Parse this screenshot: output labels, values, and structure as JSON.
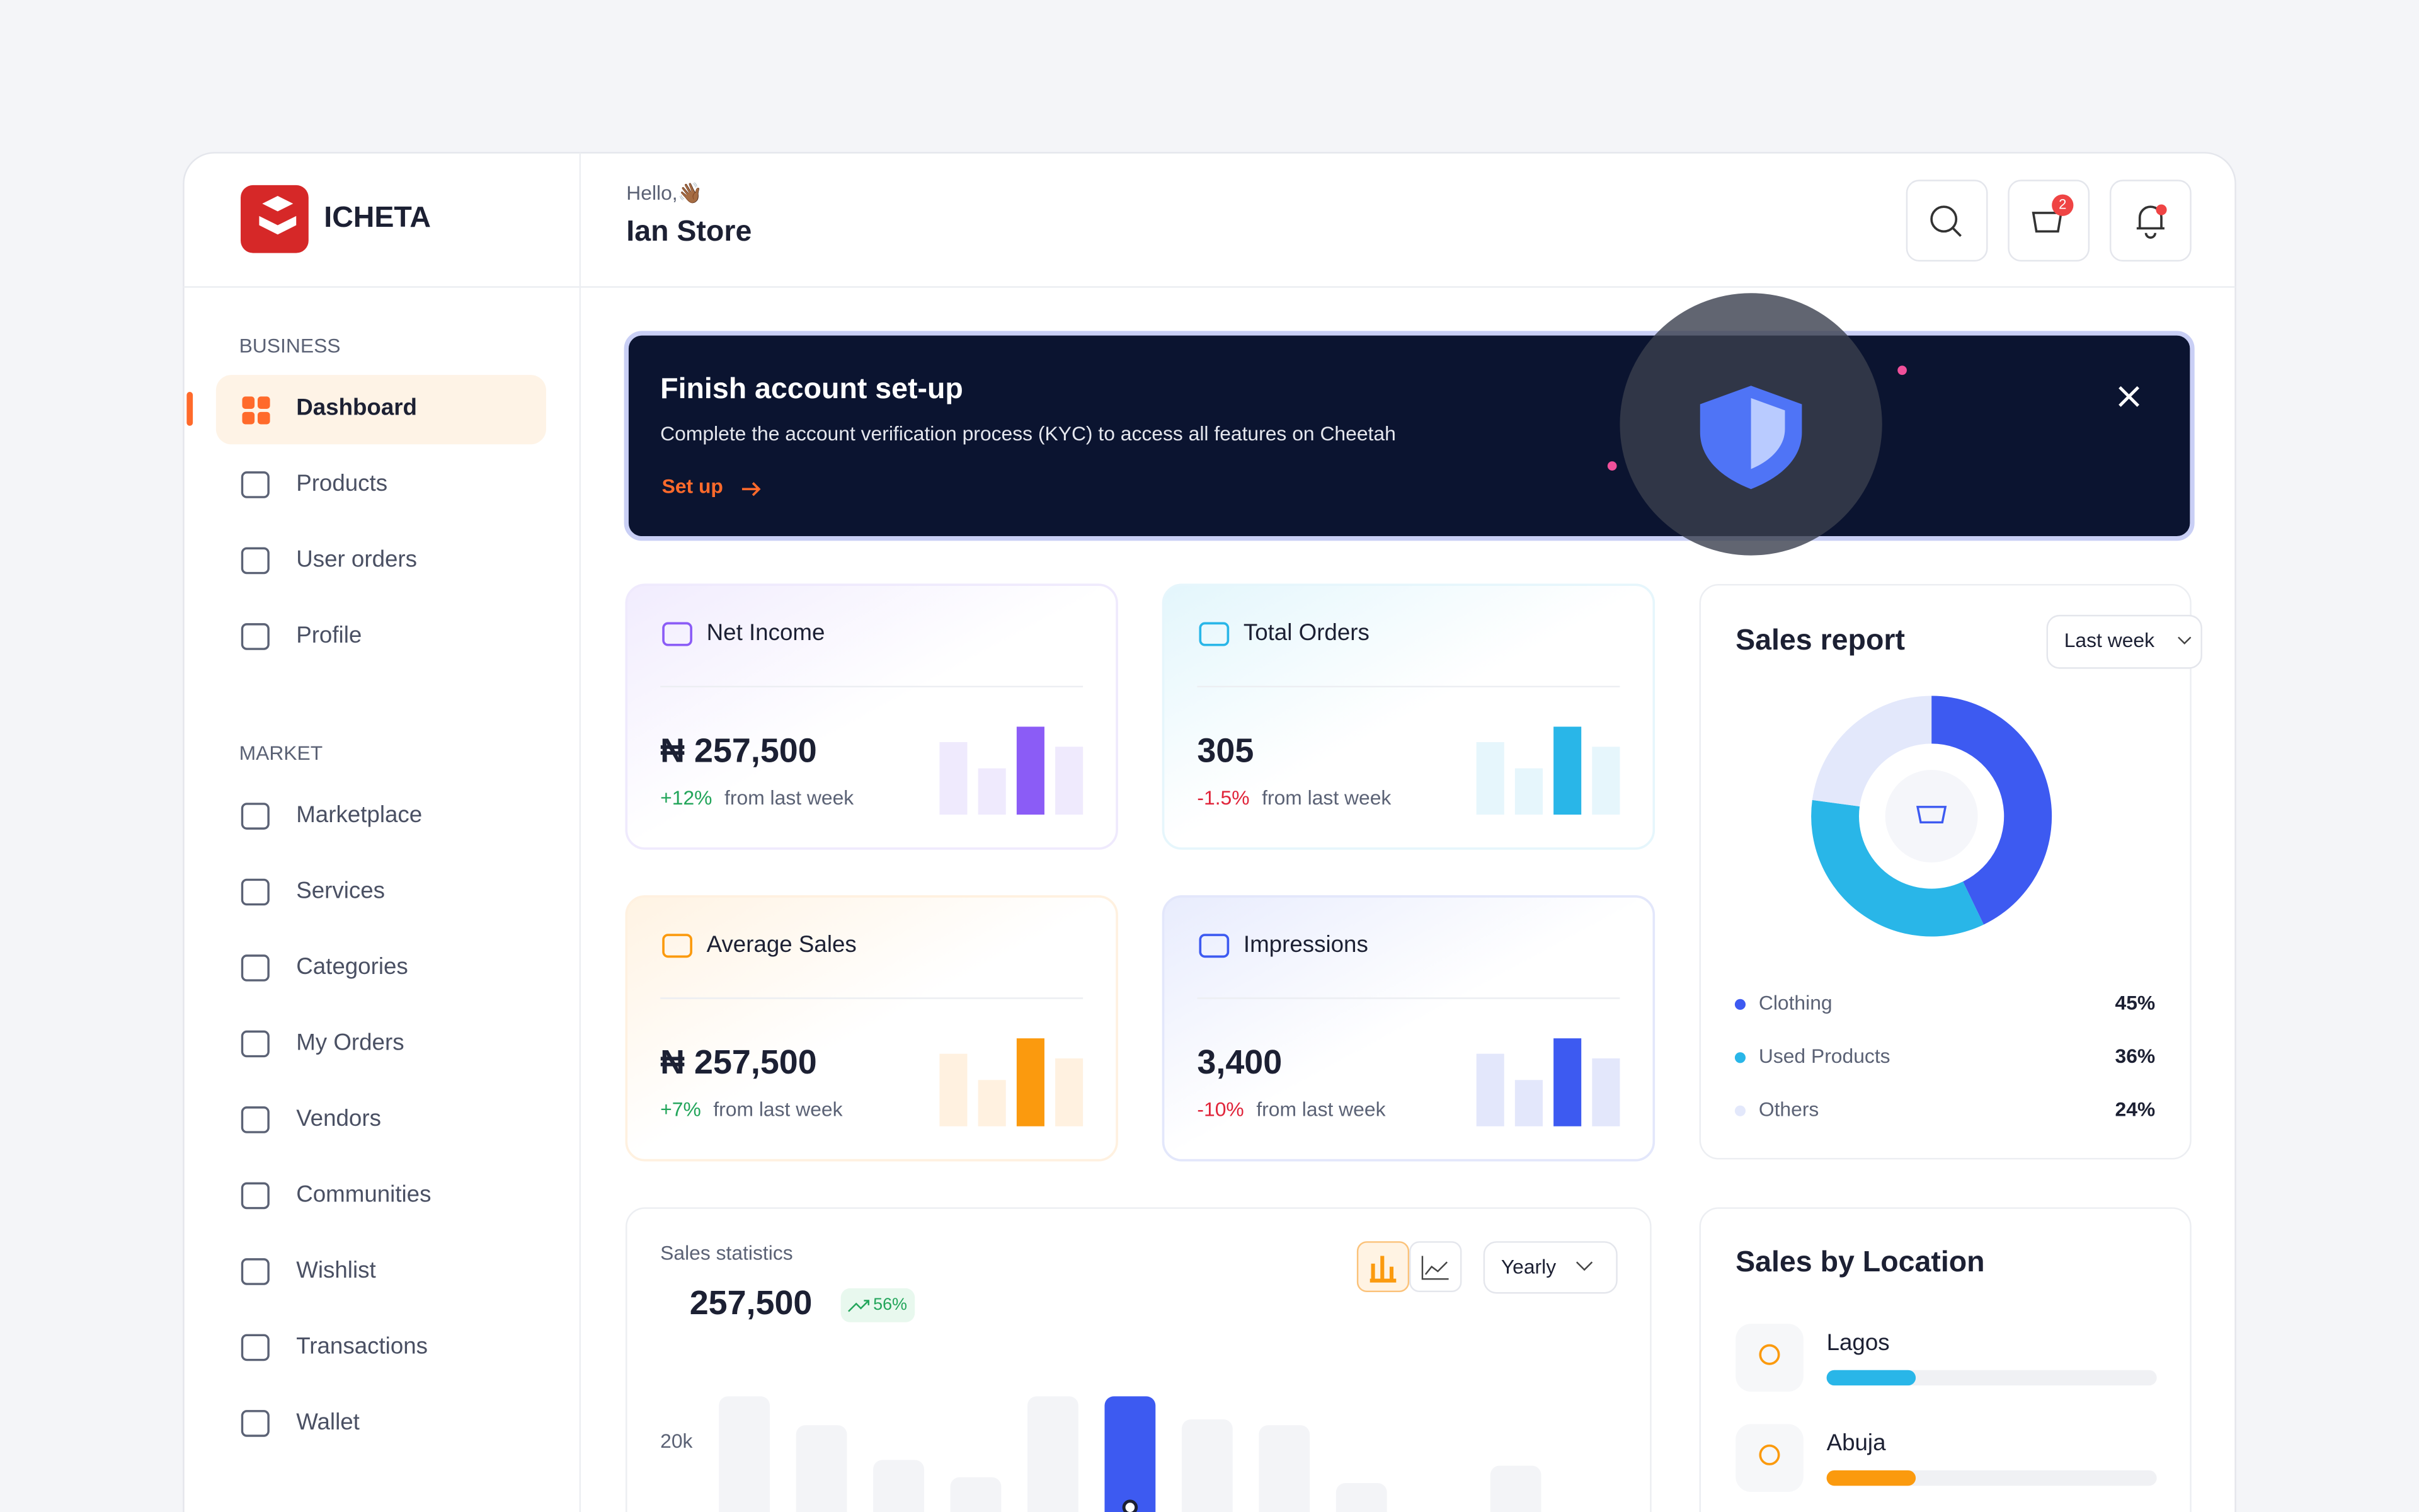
{
  "brand": "ICHETA",
  "header": {
    "greeting": "Hello,👋🏾",
    "store": "Ian Store",
    "cart_count": "2"
  },
  "sidebar": {
    "sections": [
      {
        "title": "BUSINESS",
        "items": [
          "Dashboard",
          "Products",
          "User orders",
          "Profile"
        ]
      },
      {
        "title": "MARKET",
        "items": [
          "Marketplace",
          "Services",
          "Categories",
          "My Orders",
          "Vendors",
          "Communities",
          "Wishlist",
          "Transactions",
          "Wallet"
        ]
      }
    ]
  },
  "banner": {
    "title": "Finish account set-up",
    "text": "Complete the account verification process (KYC) to access all features on Cheetah",
    "action": "Set up"
  },
  "stats": [
    {
      "label": "Net Income",
      "value": "₦ 257,500",
      "change": "+12%",
      "note": "from last week",
      "color": "#8b5cf6",
      "light_color": "#efeafd",
      "change_color": "#22a55a",
      "trend": [
        47,
        30,
        57,
        44
      ]
    },
    {
      "label": "Total Orders",
      "value": "305",
      "change": "-1.5%",
      "note": "from last week",
      "color": "#29b6e8",
      "light_color": "#e6f6fc",
      "change_color": "#e0243a",
      "trend": [
        47,
        30,
        57,
        44
      ]
    },
    {
      "label": "Average Sales",
      "value": "₦ 257,500",
      "change": "+7%",
      "note": "from last week",
      "color": "#fb9a0e",
      "light_color": "#fff1e0",
      "change_color": "#22a55a",
      "trend": [
        47,
        30,
        57,
        44
      ]
    },
    {
      "label": "Impressions",
      "value": "3,400",
      "change": "-10%",
      "note": "from last week",
      "color": "#3d5af1",
      "light_color": "#e3e7fb",
      "change_color": "#e0243a",
      "trend": [
        47,
        30,
        57,
        44
      ]
    }
  ],
  "chart_data": [
    {
      "type": "pie",
      "title": "Sales report",
      "period": "Last week",
      "categories": [
        "Clothing",
        "Used Products",
        "Others"
      ],
      "values": [
        45,
        36,
        24
      ],
      "value_labels": [
        "45%",
        "36%",
        "24%"
      ],
      "colors": [
        "#3d5af1",
        "#29b6e8",
        "#e3e8fb"
      ]
    },
    {
      "type": "bar",
      "title": "Sales statistics",
      "total": "257,500",
      "change": "56%",
      "period": "Yearly",
      "categories": [
        null,
        null,
        null,
        null,
        null,
        null,
        null,
        null,
        null,
        null,
        null
      ],
      "values": [
        28000,
        23000,
        17000,
        14000,
        28000,
        28000,
        24000,
        23000,
        13000,
        null,
        16000
      ],
      "color": "#f3f4f7",
      "highlight_color": "#3d5af1",
      "highlight_index": 5,
      "ylim": [
        0,
        30000
      ],
      "yticks": [
        {
          "value": 20000,
          "label": "20k"
        }
      ]
    },
    {
      "type": "bar",
      "orientation": "horizontal",
      "title": "Sales by Location",
      "categories": [
        "Lagos",
        "Abuja"
      ],
      "values": [
        27,
        27
      ],
      "colors": [
        "#29b6e8",
        "#fb9a0e"
      ],
      "xlim": [
        0,
        100
      ]
    }
  ]
}
